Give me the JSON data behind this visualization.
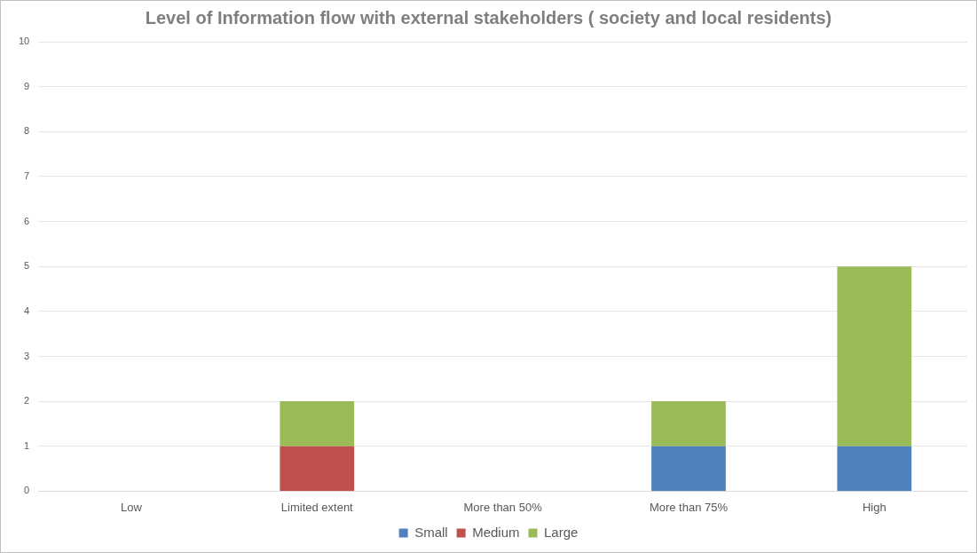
{
  "chart_data": {
    "type": "bar",
    "title": "Level of Information flow with external stakeholders ( society and local residents)",
    "categories": [
      "Low",
      "Limited extent",
      "More than 50%",
      "More than 75%",
      "High"
    ],
    "stacked": true,
    "series": [
      {
        "name": "Small",
        "color": "#4f81bd",
        "values": [
          0,
          0,
          0,
          1,
          1
        ]
      },
      {
        "name": "Medium",
        "color": "#c0504d",
        "values": [
          0,
          1,
          0,
          0,
          0
        ]
      },
      {
        "name": "Large",
        "color": "#9bbb59",
        "values": [
          0,
          1,
          0,
          1,
          4
        ]
      }
    ],
    "ylim": [
      0,
      10
    ],
    "yticks": [
      0,
      1,
      2,
      3,
      4,
      5,
      6,
      7,
      8,
      9,
      10
    ],
    "grid": "y",
    "legend": "bottom"
  }
}
